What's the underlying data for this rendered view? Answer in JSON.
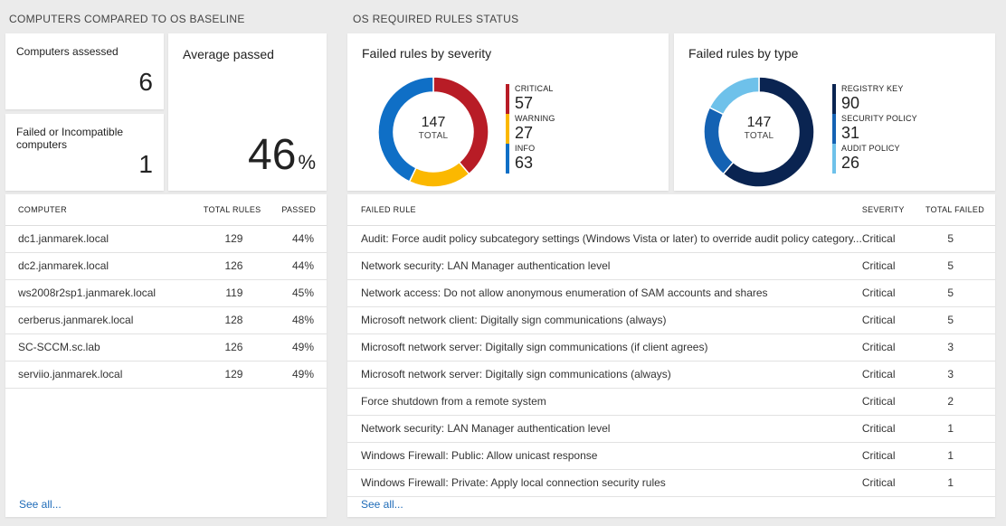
{
  "left": {
    "section_title": "COMPUTERS COMPARED TO OS BASELINE",
    "computers_assessed_label": "Computers assessed",
    "computers_assessed_value": "6",
    "failed_label": "Failed or Incompatible computers",
    "failed_value": "1",
    "avg_label": "Average passed",
    "avg_value": "46",
    "avg_unit": "%",
    "table": {
      "headers": [
        "COMPUTER",
        "TOTAL RULES",
        "PASSED"
      ],
      "rows": [
        [
          "dc1.janmarek.local",
          "129",
          "44%"
        ],
        [
          "dc2.janmarek.local",
          "126",
          "44%"
        ],
        [
          "ws2008r2sp1.janmarek.local",
          "119",
          "45%"
        ],
        [
          "cerberus.janmarek.local",
          "128",
          "48%"
        ],
        [
          "SC-SCCM.sc.lab",
          "126",
          "49%"
        ],
        [
          "serviio.janmarek.local",
          "129",
          "49%"
        ]
      ],
      "see_all": "See all..."
    }
  },
  "right": {
    "section_title": "OS REQUIRED RULES STATUS",
    "severity_title": "Failed rules by severity",
    "type_title": "Failed rules by type",
    "table": {
      "headers": [
        "FAILED RULE",
        "SEVERITY",
        "TOTAL FAILED"
      ],
      "rows": [
        [
          "Audit: Force audit policy subcategory settings (Windows Vista or later) to override audit policy category...",
          "Critical",
          "5"
        ],
        [
          "Network security: LAN Manager authentication level",
          "Critical",
          "5"
        ],
        [
          "Network access: Do not allow anonymous enumeration of SAM accounts and shares",
          "Critical",
          "5"
        ],
        [
          "Microsoft network client: Digitally sign communications (always)",
          "Critical",
          "5"
        ],
        [
          "Microsoft network server: Digitally sign communications (if client agrees)",
          "Critical",
          "3"
        ],
        [
          "Microsoft network server: Digitally sign communications (always)",
          "Critical",
          "3"
        ],
        [
          "Force shutdown from a remote system",
          "Critical",
          "2"
        ],
        [
          "Network security: LAN Manager authentication level",
          "Critical",
          "1"
        ],
        [
          "Windows Firewall: Public: Allow unicast response",
          "Critical",
          "1"
        ],
        [
          "Windows Firewall: Private: Apply local connection security rules",
          "Critical",
          "1"
        ]
      ],
      "see_all": "See all..."
    }
  },
  "chart_data": [
    {
      "type": "pie",
      "title": "Failed rules by severity",
      "total": 147,
      "total_label": "TOTAL",
      "slices": [
        {
          "name": "CRITICAL",
          "value": 57,
          "color": "#b81c26"
        },
        {
          "name": "WARNING",
          "value": 27,
          "color": "#fbb800"
        },
        {
          "name": "INFO",
          "value": 63,
          "color": "#0f6fc6"
        }
      ]
    },
    {
      "type": "pie",
      "title": "Failed rules by type",
      "total": 147,
      "total_label": "TOTAL",
      "slices": [
        {
          "name": "REGISTRY KEY",
          "value": 90,
          "color": "#0a2451"
        },
        {
          "name": "SECURITY POLICY",
          "value": 31,
          "color": "#1462b3"
        },
        {
          "name": "AUDIT POLICY",
          "value": 26,
          "color": "#6ec1ea"
        }
      ]
    }
  ]
}
